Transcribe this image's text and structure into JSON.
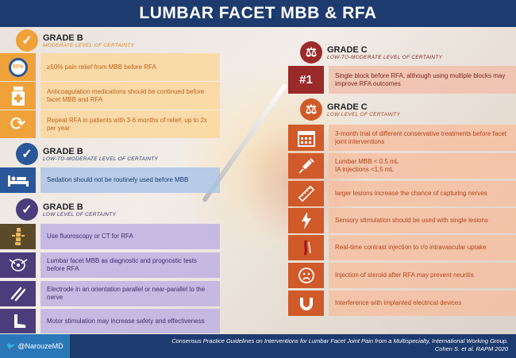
{
  "header": {
    "title": "LUMBAR FACET MBB & RFA"
  },
  "left": {
    "grade_b_moderate": {
      "title": "GRADE B",
      "subtitle": "MODERATE LEVEL OF CERTAINTY",
      "color": "#f0a23a",
      "icon": "checkmark-icon",
      "items": [
        {
          "icon": "fifty-percent-icon",
          "icon_text": "50%",
          "text": "≥50% pain relief from MBB before RFA"
        },
        {
          "icon": "medication-bottle-icon",
          "text": "Anticoagulation medications should be continued before facet MBB and RFA"
        },
        {
          "icon": "repeat-icon",
          "text": "Repeat RFA in patients with 3-6 months of relief, up to 2x per year"
        }
      ]
    },
    "grade_b_low_moderate": {
      "title": "GRADE B",
      "subtitle": "LOW-TO-MODERATE LEVEL OF CERTAINTY",
      "color": "#2a5799",
      "icon": "checkmark-icon",
      "items": [
        {
          "icon": "bed-icon",
          "text": "Sedation should not be routinely used before MBB"
        }
      ]
    },
    "grade_b_low": {
      "title": "GRADE B",
      "subtitle": "LOW LEVEL OF CERTAINTY",
      "color": "#4b3d7c",
      "icon": "checkmark-icon",
      "items": [
        {
          "icon": "spine-xray-icon",
          "text": "Use fluoroscopy or CT for RFA"
        },
        {
          "icon": "target-needle-icon",
          "text": "Lumbar facet MBB as diagnostic and prognostic tests before RFA"
        },
        {
          "icon": "parallel-lines-icon",
          "text": "Electrode in an orientation parallel or near-parallel to the nerve"
        },
        {
          "icon": "foot-icon",
          "text": "Motor stimulation may increase safety and effectiveness"
        }
      ]
    }
  },
  "right": {
    "grade_c_low_moderate": {
      "title": "GRADE C",
      "subtitle": "LOW-TO-MODERATE LEVEL OF CERTAINTY",
      "color": "#9b2a2a",
      "icon": "scale-icon",
      "items": [
        {
          "icon": "number-one-icon",
          "icon_text": "#1",
          "text": "Single block before RFA, although using multiple blocks may improve RFA outcomes"
        }
      ]
    },
    "grade_c_low": {
      "title": "GRADE C",
      "subtitle": "LOW LEVEL OF CERTAINTY",
      "color": "#d05a2a",
      "icon": "scale-icon",
      "items": [
        {
          "icon": "calendar-icon",
          "text": "3-month trial of different conservative treatments before facet joint interventions"
        },
        {
          "icon": "syringe-icon",
          "text": "Lumbar MBB < 0.5 mL\nIA injections <1.5 mL"
        },
        {
          "icon": "ruler-icon",
          "text": "larger lesions increase the chance of capturing nerves"
        },
        {
          "icon": "lightning-icon",
          "text": "Sensory stimulation should be used with single lesions"
        },
        {
          "icon": "contrast-vessel-icon",
          "text": "Real-time contrast injection to r/o intravascular uptake"
        },
        {
          "icon": "sad-face-icon",
          "text": "Injection of steroid after RFA may prevent neuritis"
        },
        {
          "icon": "magnet-icon",
          "text": "Interference with implanted electrical devices"
        }
      ]
    }
  },
  "footer": {
    "handle": "@NarouzeMD",
    "citation_line1": "Consensus Practice Guidelines on Interventions for Lumbar Facet Joint Pain from a Multispecialty, International Working Group.",
    "citation_line2": "Cohen S. et al. RAPM 2020"
  }
}
